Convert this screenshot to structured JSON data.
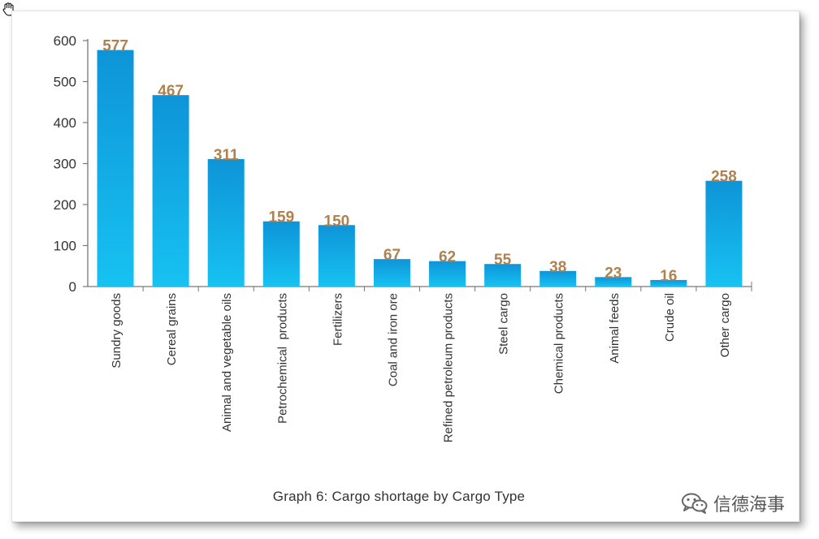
{
  "chart_data": {
    "type": "bar",
    "categories": [
      "Sundry goods",
      "Cereal grains",
      "Animal and vegetable oils",
      "Petrochemical  products",
      "Fertilizers",
      "Coal and iron ore",
      "Refined petroleum products",
      "Steel cargo",
      "Chemical products",
      "Animal feeds",
      "Crude oil",
      "Other cargo"
    ],
    "values": [
      577,
      467,
      311,
      159,
      150,
      67,
      62,
      55,
      38,
      23,
      16,
      258
    ],
    "data_labels": [
      "577",
      "467",
      "311",
      "159",
      "150",
      "67",
      "62",
      "55",
      "38",
      "23",
      "16",
      "258"
    ],
    "title": "",
    "xlabel": "",
    "ylabel": "",
    "ylim": [
      0,
      600
    ],
    "yticks": [
      0,
      100,
      200,
      300,
      400,
      500,
      600
    ],
    "grid": false,
    "legend": "none"
  },
  "caption": "Graph 6: Cargo shortage by Cargo Type",
  "watermark": {
    "text": "信德海事",
    "icon": "wechat-icon"
  },
  "colors": {
    "bar_top": "#0e94d8",
    "bar_bottom": "#17c2f2",
    "value_label": "#b0814e",
    "axis": "#777777",
    "text": "#333333"
  }
}
